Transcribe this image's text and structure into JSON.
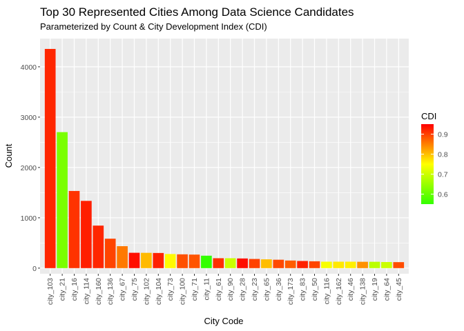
{
  "chart_data": {
    "type": "bar",
    "title": "Top 30 Represented Cities Among Data Science Candidates",
    "subtitle": "Parameterized by Count & City Development Index (CDI)",
    "xlabel": "City Code",
    "ylabel": "Count",
    "ylim": [
      0,
      4560
    ],
    "yticks": [
      0,
      1000,
      2000,
      3000,
      4000
    ],
    "grid": true,
    "categories": [
      "city_103",
      "city_21",
      "city_16",
      "city_114",
      "city_160",
      "city_136",
      "city_67",
      "city_75",
      "city_102",
      "city_104",
      "city_73",
      "city_100",
      "city_71",
      "city_11",
      "city_61",
      "city_90",
      "city_28",
      "city_23",
      "city_65",
      "city_36",
      "city_173",
      "city_83",
      "city_50",
      "city_116",
      "city_162",
      "city_46",
      "city_138",
      "city_19",
      "city_64",
      "city_45"
    ],
    "values": [
      4355,
      2702,
      1533,
      1336,
      845,
      585,
      436,
      305,
      304,
      301,
      280,
      274,
      269,
      247,
      197,
      197,
      192,
      182,
      175,
      167,
      151,
      142,
      136,
      128,
      128,
      128,
      126,
      126,
      121,
      119
    ],
    "cdi": [
      0.92,
      0.62,
      0.91,
      0.926,
      0.92,
      0.897,
      0.855,
      0.939,
      0.804,
      0.924,
      0.754,
      0.887,
      0.884,
      0.55,
      0.913,
      0.698,
      0.939,
      0.899,
      0.802,
      0.893,
      0.878,
      0.923,
      0.896,
      0.743,
      0.767,
      0.762,
      0.836,
      0.682,
      0.698,
      0.89
    ],
    "color_scale": {
      "title": "CDI",
      "domain": [
        0.55,
        0.95
      ],
      "ticks": [
        0.6,
        0.7,
        0.8,
        0.9
      ],
      "low": "#33ff00",
      "mid": "#ffff00",
      "high": "#ff0000"
    },
    "legend_position": "right"
  }
}
